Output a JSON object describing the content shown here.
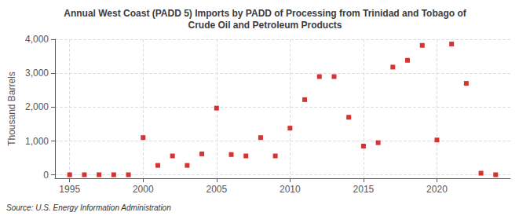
{
  "chart_data": {
    "type": "scatter",
    "title": "Annual West Coast (PADD 5) Imports by PADD of Processing from Trinidad and Tobago of\nCrude Oil and Petroleum Products",
    "ylabel": "Thousand Barrels",
    "annotations": [
      "Source: U.S. Energy Information Administration"
    ],
    "color": "#cc0000",
    "marker": "square",
    "grid": true,
    "xlim": [
      1994,
      2025
    ],
    "ylim": [
      -100,
      4000
    ],
    "xticks": [
      1995,
      2000,
      2005,
      2010,
      2015,
      2020
    ],
    "yticks": [
      0,
      {
        "value": 1000,
        "label": "1,000"
      },
      {
        "value": 2000,
        "label": "2,000"
      },
      {
        "value": 3000,
        "label": "3,000"
      },
      {
        "value": 4000,
        "label": "4,000"
      }
    ],
    "x": [
      1995,
      1996,
      1997,
      1998,
      1999,
      2000,
      2001,
      2002,
      2003,
      2004,
      2005,
      2006,
      2007,
      2008,
      2009,
      2010,
      2011,
      2012,
      2013,
      2014,
      2015,
      2016,
      2017,
      2018,
      2019,
      2020,
      2021,
      2022,
      2023,
      2024
    ],
    "values": [
      5,
      5,
      5,
      5,
      5,
      1100,
      280,
      560,
      280,
      620,
      1970,
      600,
      560,
      1100,
      560,
      1380,
      2220,
      2900,
      2900,
      1700,
      850,
      950,
      3180,
      3380,
      3820,
      1030,
      3860,
      2700,
      50,
      5
    ]
  }
}
